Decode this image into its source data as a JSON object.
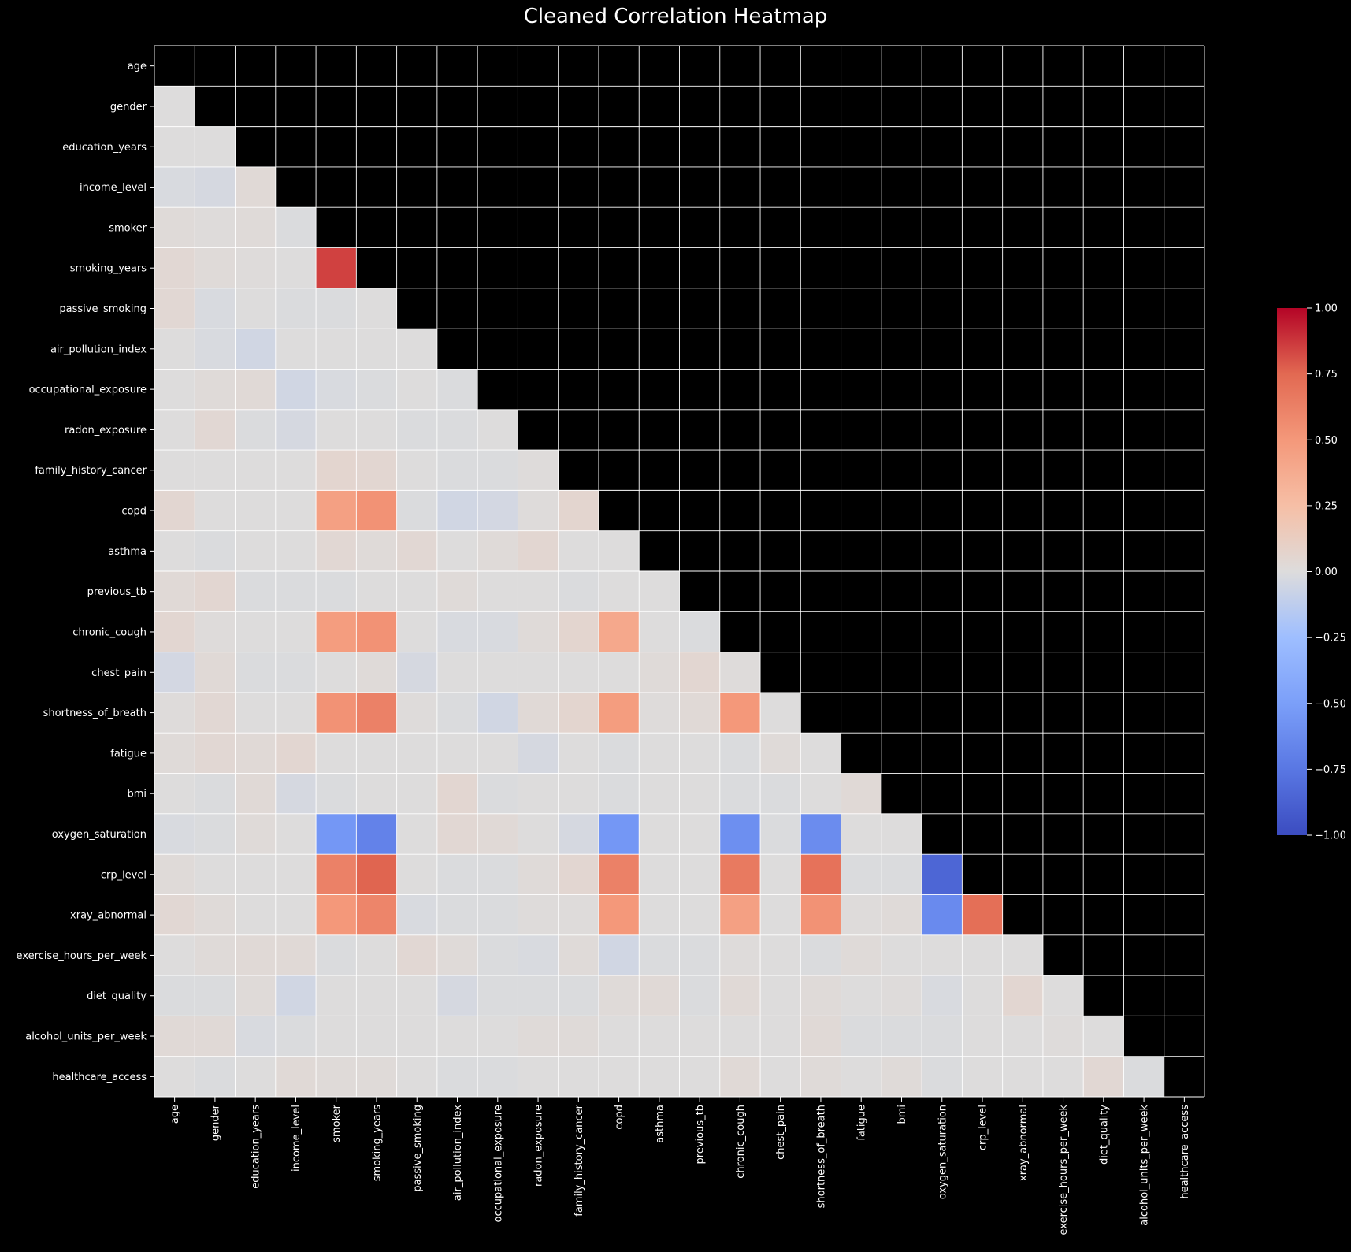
{
  "chart_data": {
    "type": "heatmap",
    "title": "Cleaned Correlation Heatmap",
    "labels": [
      "age",
      "gender",
      "education_years",
      "income_level",
      "smoker",
      "smoking_years",
      "passive_smoking",
      "air_pollution_index",
      "occupational_exposure",
      "radon_exposure",
      "family_history_cancer",
      "copd",
      "asthma",
      "previous_tb",
      "chronic_cough",
      "chest_pain",
      "shortness_of_breath",
      "fatigue",
      "bmi",
      "oxygen_saturation",
      "crp_level",
      "xray_abnormal",
      "exercise_hours_per_week",
      "diet_quality",
      "alcohol_units_per_week",
      "healthcare_access"
    ],
    "mask": "upper-triangle-and-diagonal",
    "colormap": "coolwarm",
    "vmin": -1.0,
    "vmax": 1.0,
    "colorbar_ticks": [
      "1.00",
      "0.75",
      "0.50",
      "0.25",
      "0.00",
      "−0.25",
      "−0.50",
      "−0.75",
      "−1.00"
    ],
    "colorbar_tick_values": [
      1.0,
      0.75,
      0.5,
      0.25,
      0.0,
      -0.25,
      -0.5,
      -0.75,
      -1.0
    ],
    "mask_color": "#000000",
    "grid_line_color": "#ffffff",
    "background": "#000000",
    "matrix": [
      [],
      [
        0.0
      ],
      [
        0.0,
        0.0
      ],
      [
        -0.02,
        -0.03,
        0.03
      ],
      [
        0.02,
        0.01,
        0.02,
        -0.01
      ],
      [
        0.04,
        0.02,
        0.01,
        0.0,
        0.85
      ],
      [
        0.04,
        -0.02,
        0.0,
        -0.01,
        -0.01,
        0.0
      ],
      [
        0.0,
        -0.02,
        -0.05,
        0.0,
        0.0,
        0.0,
        0.0
      ],
      [
        0.0,
        0.02,
        0.03,
        -0.05,
        -0.02,
        -0.01,
        0.0,
        -0.01
      ],
      [
        0.0,
        0.04,
        -0.01,
        -0.03,
        0.0,
        0.0,
        -0.01,
        -0.01,
        0.0
      ],
      [
        0.0,
        0.0,
        0.0,
        0.0,
        0.06,
        0.05,
        0.0,
        -0.01,
        -0.01,
        0.01
      ],
      [
        0.05,
        0.0,
        0.0,
        0.0,
        0.45,
        0.53,
        -0.01,
        -0.05,
        -0.04,
        0.01,
        0.06
      ],
      [
        0.0,
        -0.01,
        0.0,
        0.0,
        0.04,
        0.02,
        0.04,
        0.0,
        0.02,
        0.05,
        0.0,
        0.0
      ],
      [
        0.03,
        0.05,
        -0.01,
        -0.01,
        -0.01,
        0.0,
        0.0,
        0.02,
        0.0,
        0.0,
        -0.01,
        0.0,
        0.0
      ],
      [
        0.05,
        0.01,
        0.0,
        0.0,
        0.47,
        0.53,
        0.0,
        -0.02,
        -0.02,
        0.02,
        0.06,
        0.4,
        0.0,
        -0.01
      ],
      [
        -0.04,
        0.03,
        -0.01,
        -0.01,
        0.0,
        0.02,
        -0.03,
        0.0,
        0.0,
        0.0,
        0.0,
        0.0,
        0.02,
        0.05,
        0.01
      ],
      [
        0.01,
        0.04,
        0.0,
        0.0,
        0.53,
        0.62,
        0.01,
        -0.01,
        -0.05,
        0.03,
        0.06,
        0.47,
        0.01,
        0.03,
        0.5,
        0.0
      ],
      [
        0.02,
        0.04,
        0.03,
        0.05,
        0.0,
        0.0,
        0.0,
        0.0,
        0.0,
        -0.03,
        0.0,
        -0.01,
        0.0,
        0.0,
        -0.01,
        0.02,
        0.0
      ],
      [
        0.0,
        -0.01,
        0.03,
        -0.03,
        -0.01,
        0.0,
        0.0,
        0.05,
        -0.01,
        0.0,
        0.0,
        -0.01,
        0.0,
        0.0,
        -0.01,
        -0.01,
        0.0,
        0.03
      ],
      [
        -0.02,
        -0.01,
        0.02,
        0.0,
        -0.55,
        -0.68,
        0.0,
        0.04,
        0.03,
        0.0,
        -0.03,
        -0.55,
        0.0,
        0.0,
        -0.6,
        -0.01,
        -0.62,
        0.0,
        0.0
      ],
      [
        0.02,
        0.0,
        0.0,
        0.0,
        0.62,
        0.76,
        0.0,
        -0.01,
        -0.01,
        0.02,
        0.05,
        0.62,
        0.0,
        0.0,
        0.66,
        0.0,
        0.7,
        -0.01,
        -0.01,
        -0.85
      ],
      [
        0.04,
        0.02,
        0.0,
        0.0,
        0.5,
        0.6,
        -0.02,
        -0.01,
        -0.01,
        0.01,
        0.01,
        0.5,
        0.0,
        0.0,
        0.45,
        0.0,
        0.53,
        0.01,
        0.02,
        -0.63,
        0.72
      ],
      [
        0.0,
        0.02,
        0.03,
        0.03,
        -0.01,
        0.0,
        0.04,
        0.02,
        -0.01,
        -0.02,
        0.02,
        -0.05,
        -0.01,
        -0.01,
        0.01,
        0.0,
        -0.01,
        0.02,
        0.0,
        0.0,
        0.0,
        0.0
      ],
      [
        -0.01,
        -0.01,
        0.02,
        -0.05,
        0.0,
        0.0,
        0.0,
        -0.03,
        -0.01,
        -0.01,
        -0.01,
        0.02,
        0.03,
        -0.01,
        0.03,
        0.0,
        0.02,
        0.0,
        0.01,
        -0.02,
        0.0,
        0.05,
        0.0
      ],
      [
        0.03,
        0.03,
        -0.02,
        -0.01,
        0.0,
        0.0,
        0.0,
        0.0,
        0.0,
        0.02,
        0.02,
        0.0,
        0.0,
        0.0,
        0.0,
        0.0,
        0.03,
        -0.01,
        -0.01,
        -0.01,
        0.0,
        0.0,
        0.01,
        0.0
      ],
      [
        0.0,
        -0.01,
        0.0,
        0.03,
        0.02,
        0.02,
        0.0,
        -0.01,
        -0.01,
        0.0,
        0.0,
        0.0,
        0.0,
        0.0,
        0.03,
        0.0,
        0.02,
        0.0,
        0.02,
        -0.01,
        0.0,
        0.0,
        0.0,
        0.04,
        -0.01
      ]
    ]
  }
}
